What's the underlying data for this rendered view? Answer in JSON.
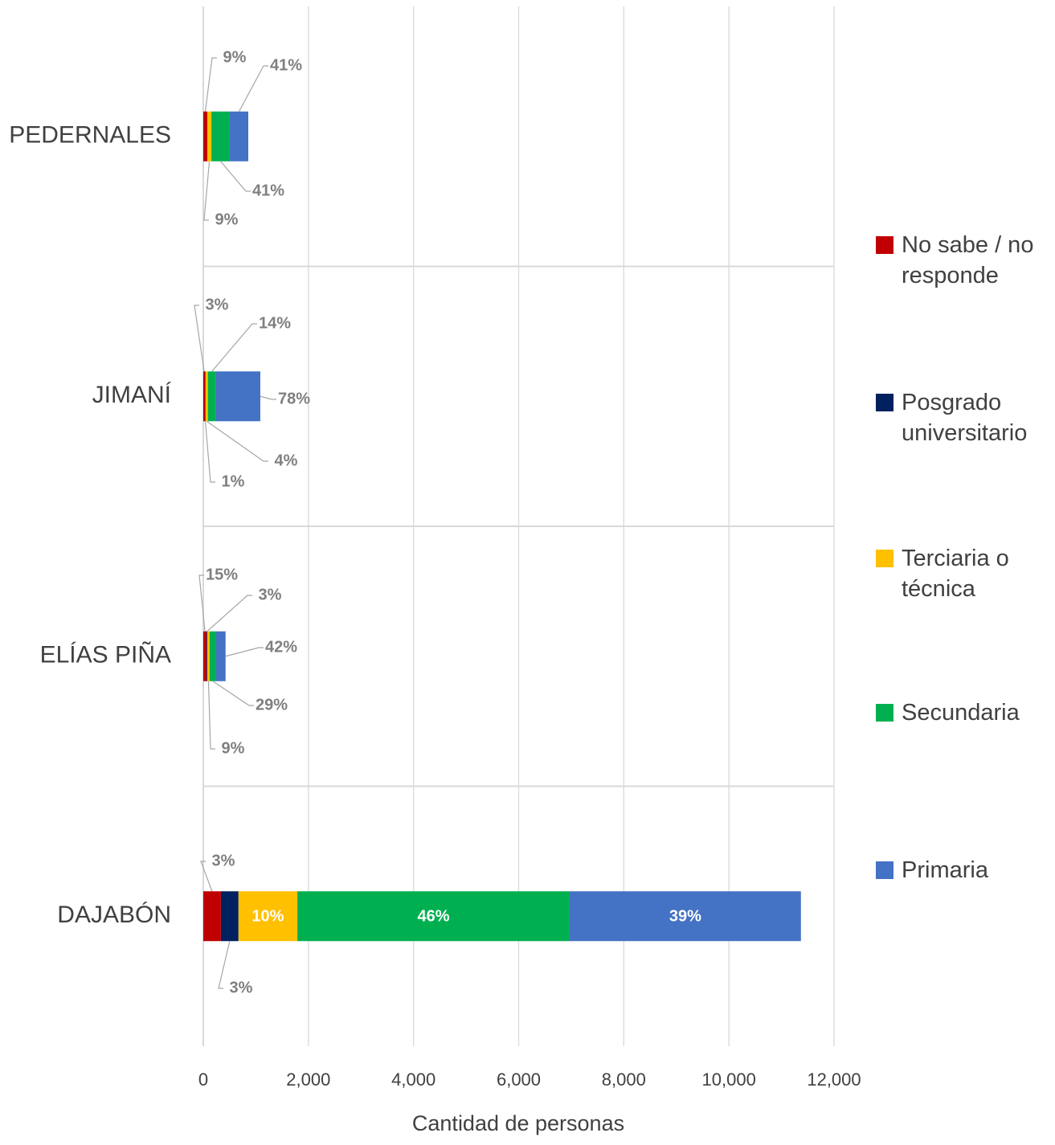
{
  "chart_data": {
    "type": "stacked-bar-horizontal",
    "categories": [
      "PEDERNALES",
      "JIMANÍ",
      "ELÍAS PIÑA",
      "DAJABÓN"
    ],
    "series": [
      {
        "name": "No sabe / no responde",
        "color": "#c00000",
        "values": [
          77,
          33,
          65,
          335
        ],
        "value_labels": [
          "9%",
          "3%",
          "15%",
          "3%"
        ]
      },
      {
        "name": "Posgrado universitario",
        "color": "#002060",
        "values": [
          0,
          11,
          14,
          335
        ],
        "value_labels": [
          null,
          "1%",
          "3%",
          "3%"
        ]
      },
      {
        "name": "Terciaria o técnica",
        "color": "#ffc000",
        "values": [
          77,
          43,
          40,
          1120
        ],
        "value_labels": [
          "9%",
          "4%",
          "9%",
          "10%"
        ]
      },
      {
        "name": "Secundaria",
        "color": "#00b050",
        "values": [
          351,
          152,
          125,
          5180
        ],
        "value_labels": [
          "41%",
          "14%",
          "29%",
          "46%"
        ]
      },
      {
        "name": "Primaria",
        "color": "#4472c4",
        "values": [
          351,
          846,
          180,
          4400
        ],
        "value_labels": [
          "41%",
          "78%",
          "42%",
          "39%"
        ]
      }
    ],
    "x_label": "Cantidad de personas",
    "xlim": [
      0,
      12000
    ],
    "xticks": [
      0,
      {
        "value": 2000,
        "label": "2,000"
      },
      {
        "value": 4000,
        "label": "4,000"
      },
      {
        "value": 6000,
        "label": "6,000"
      },
      {
        "value": 8000,
        "label": "8,000"
      },
      {
        "value": 10000,
        "label": "10,000"
      },
      {
        "value": 12000,
        "label": "12,000"
      }
    ],
    "grid": true,
    "legend": "right"
  }
}
